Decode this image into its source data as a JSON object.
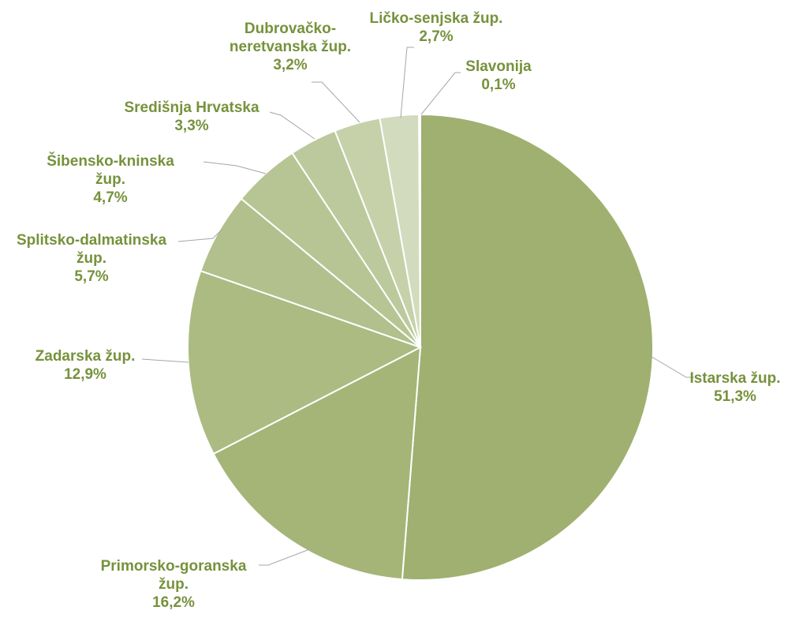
{
  "chart_data": {
    "type": "pie",
    "title": "",
    "unit": "%",
    "start_angle_deg": 0,
    "direction": "clockwise",
    "colors": {
      "label": "#76923c",
      "leader_line": "#a6a6a6",
      "slice_border": "#ffffff"
    },
    "slices": [
      {
        "label_lines": [
          "Istarska žup."
        ],
        "value": 51.3,
        "value_label": "51,3%",
        "color": "#9fb070"
      },
      {
        "label_lines": [
          "Primorsko-goranska",
          "žup."
        ],
        "value": 16.2,
        "value_label": "16,2%",
        "color": "#a4b577"
      },
      {
        "label_lines": [
          "Zadarska žup."
        ],
        "value": 12.9,
        "value_label": "12,9%",
        "color": "#abbb82"
      },
      {
        "label_lines": [
          "Splitsko-dalmatinska",
          "žup."
        ],
        "value": 5.7,
        "value_label": "5,7%",
        "color": "#b1c08c"
      },
      {
        "label_lines": [
          "Šibensko-kninska",
          "žup."
        ],
        "value": 4.7,
        "value_label": "4,7%",
        "color": "#b7c594"
      },
      {
        "label_lines": [
          "Središnja Hrvatska"
        ],
        "value": 3.3,
        "value_label": "3,3%",
        "color": "#bcc99c"
      },
      {
        "label_lines": [
          "Dubrovačko-",
          "neretvanska žup."
        ],
        "value": 3.2,
        "value_label": "3,2%",
        "color": "#c6d1aa"
      },
      {
        "label_lines": [
          "Ličko-senjska žup."
        ],
        "value": 2.7,
        "value_label": "2,7%",
        "color": "#d2dbbd"
      },
      {
        "label_lines": [
          "Slavonija"
        ],
        "value": 0.1,
        "value_label": "0,1%",
        "color": "#dde4cc"
      }
    ]
  }
}
